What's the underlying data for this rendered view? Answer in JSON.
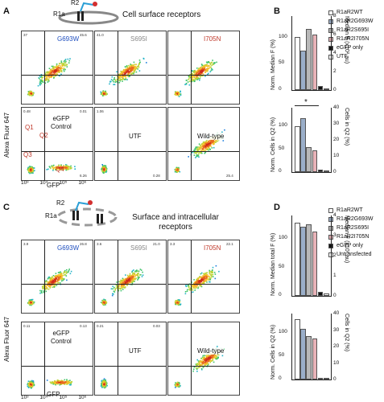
{
  "panelA": {
    "letter": "A",
    "schematic": {
      "r2": "R2",
      "r1a": "R1a",
      "title": "Cell surface receptors"
    },
    "yaxis": "Alexa Fluor 647",
    "xaxis": "GFP",
    "ticks": [
      "10³",
      "10⁴",
      "10⁵",
      "10⁶"
    ],
    "plots": [
      {
        "label": "G693W",
        "color": "#1f4fbf",
        "q": [
          "37",
          "45.6",
          "",
          ""
        ]
      },
      {
        "label": "S695I",
        "color": "#888888",
        "q": [
          "41.0",
          "",
          "",
          ""
        ]
      },
      {
        "label": "I705N",
        "color": "#c0392b",
        "q": [
          "",
          "",
          "",
          ""
        ]
      },
      {
        "label": "eGFP\nControl",
        "q": [
          "0.48",
          "0.01",
          "",
          "6.26"
        ],
        "quad": [
          "Q1",
          "Q2",
          "Q3",
          "Q4"
        ]
      },
      {
        "label": "UTF",
        "q": [
          "1.06",
          "",
          "",
          "0.28"
        ]
      },
      {
        "label": "Wild-type",
        "q": [
          "",
          "",
          "",
          "25.4"
        ]
      }
    ]
  },
  "panelB": {
    "letter": "B",
    "legend": [
      "R1aR2WT",
      "R1aR2G693W",
      "R1aR2S695I",
      "R1aR2I705N",
      "eGFP only",
      "UTF"
    ],
    "top": {
      "ylabel_left": "Norm. Median F (%)",
      "ylabel_right": "Median F (x10² au)",
      "lticks": [
        "100",
        "50",
        "0"
      ],
      "rticks": [
        "8",
        "6",
        "4",
        "2",
        "0"
      ]
    },
    "bottom": {
      "ylabel_left": "Norm. Cells in Q2 (%)",
      "ylabel_right": "Cells in Q2 (%)",
      "lticks": [
        "100",
        "50",
        "0"
      ],
      "rticks": [
        "40",
        "30",
        "20",
        "10",
        "0"
      ],
      "star": "*"
    }
  },
  "panelC": {
    "letter": "C",
    "schematic": {
      "r2": "R2",
      "r1a": "R1a",
      "title": "Surface and intracellular\nreceptors"
    },
    "yaxis": "Alexa Fluor 647",
    "xaxis": "GFP",
    "ticks": [
      "10³",
      "10⁴",
      "10⁵",
      "10⁶"
    ],
    "plots": [
      {
        "label": "G693W",
        "color": "#1f4fbf",
        "q": [
          "3.9",
          "26.8",
          "",
          ""
        ]
      },
      {
        "label": "S695I",
        "color": "#888888",
        "q": [
          "3.6",
          "21.0",
          "",
          ""
        ]
      },
      {
        "label": "I705N",
        "color": "#c0392b",
        "q": [
          "3.3",
          "22.1",
          "",
          ""
        ]
      },
      {
        "label": "eGFP\nControl",
        "q": [
          "0.11",
          "0.13",
          "",
          ""
        ]
      },
      {
        "label": "UTF",
        "q": [
          "0.21",
          "0.03",
          "",
          ""
        ]
      },
      {
        "label": "Wild-type",
        "q": [
          "",
          "",
          "",
          ""
        ]
      }
    ]
  },
  "panelD": {
    "letter": "D",
    "legend": [
      "R1aR2WT",
      "R1aR2G693W",
      "R1aR2S695I",
      "R1aR2I705N",
      "eGFP only",
      "Untransfected"
    ],
    "top": {
      "ylabel_left": "Norm. Median total F (%)",
      "ylabel_right": "Median F (x10³ au)",
      "lticks": [
        "100",
        "50",
        "0"
      ],
      "rticks": [
        "4",
        "3",
        "2",
        "1",
        "0"
      ]
    },
    "bottom": {
      "ylabel_left": "Norm. Cells in Q2 (%)",
      "ylabel_right": "Cells in Q2 (%)",
      "lticks": [
        "100",
        "50",
        "0"
      ],
      "rticks": [
        "40",
        "30",
        "20",
        "10",
        "0"
      ]
    }
  },
  "chart_data": [
    {
      "type": "bar",
      "categories": [
        "WT",
        "G693W",
        "S695I",
        "I705N",
        "eGFP",
        "UTF"
      ],
      "values": [
        100,
        75,
        115,
        105,
        8,
        2
      ],
      "ylabel": "Norm. Median F (%)",
      "ylim": [
        0,
        140
      ]
    },
    {
      "type": "bar",
      "categories": [
        "WT",
        "G693W",
        "S695I",
        "I705N",
        "eGFP",
        "UTF"
      ],
      "values": [
        100,
        118,
        55,
        48,
        5,
        2
      ],
      "ylabel": "Norm. Cells in Q2 (%)",
      "ylim": [
        0,
        140
      ]
    },
    {
      "type": "bar",
      "categories": [
        "WT",
        "G693W",
        "S695I",
        "I705N",
        "eGFP",
        "Untransfected"
      ],
      "values": [
        100,
        95,
        98,
        88,
        5,
        3
      ],
      "ylabel": "Norm. Median total F (%)",
      "ylim": [
        0,
        110
      ]
    },
    {
      "type": "bar",
      "categories": [
        "WT",
        "G693W",
        "S695I",
        "I705N",
        "eGFP",
        "Untransfected"
      ],
      "values": [
        100,
        85,
        72,
        68,
        2,
        1
      ],
      "ylabel": "Norm. Cells in Q2 (%)",
      "ylim": [
        0,
        110
      ]
    }
  ],
  "colors": {
    "wt": "#ffffff",
    "g693w": "#9aaec9",
    "s695i": "#b8b8b8",
    "i705n": "#e8b3b8",
    "egfp": "#111111",
    "utf": "#ffffff"
  }
}
